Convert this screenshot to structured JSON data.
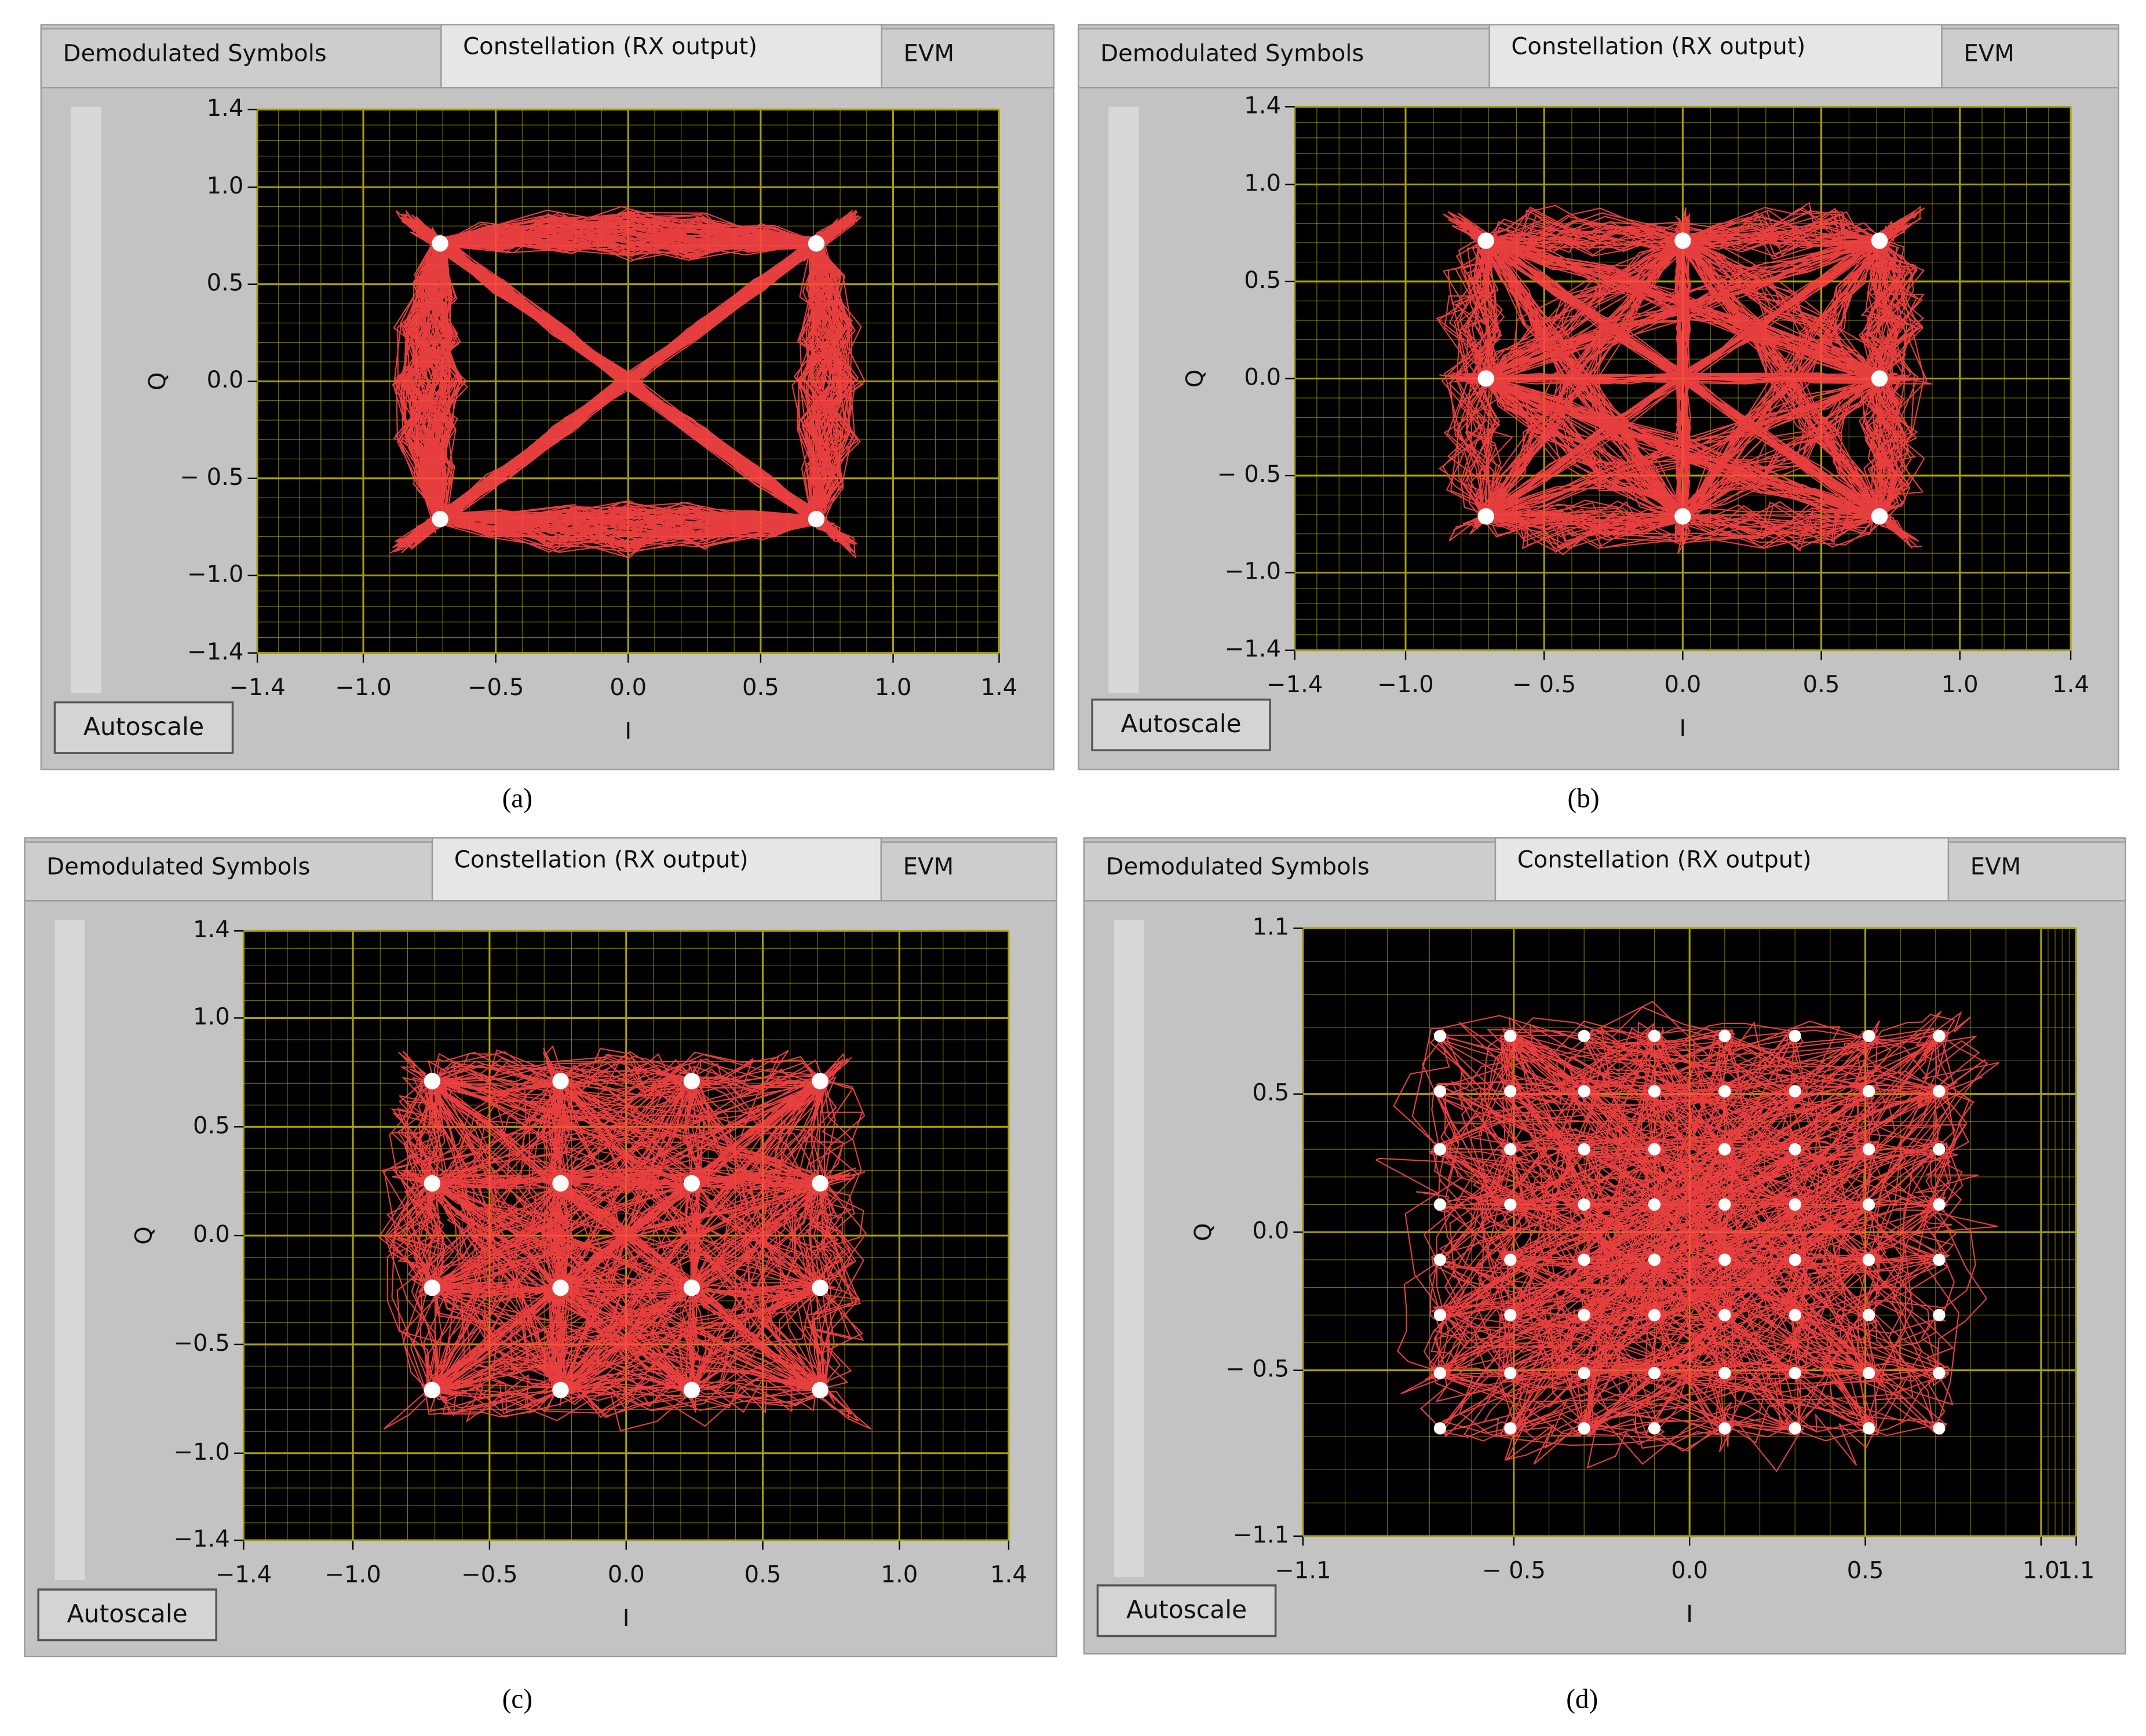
{
  "chart_data": [
    {
      "type": "scatter",
      "caption": "(a)",
      "tabs": [
        "Demodulated Symbols",
        "Constellation (RX output)",
        "EVM"
      ],
      "button": "Autoscale",
      "xlabel": "I",
      "ylabel": "Q",
      "xlim": [
        -1.4,
        1.4
      ],
      "ylim": [
        -1.4,
        1.4
      ],
      "xticks": [
        {
          "value": -1.4,
          "label": "−1.4"
        },
        {
          "value": -1.0,
          "label": "−1.0"
        },
        {
          "value": -0.5,
          "label": "−0.5"
        },
        {
          "value": 0,
          "label": "0.0"
        },
        {
          "value": 0.5,
          "label": "0.5"
        },
        {
          "value": 1.0,
          "label": "1.0"
        },
        {
          "value": 1.4,
          "label": "1.4"
        }
      ],
      "yticks": [
        {
          "value": -1.4,
          "label": "−1.4"
        },
        {
          "value": -1.0,
          "label": "−1.0"
        },
        {
          "value": -0.5,
          "label": "− 0.5"
        },
        {
          "value": 0,
          "label": "0.0"
        },
        {
          "value": 0.5,
          "label": "0.5"
        },
        {
          "value": 1.0,
          "label": "1.0"
        },
        {
          "value": 1.4,
          "label": "1.4"
        }
      ],
      "grid": true,
      "grid_color": "#a8a000",
      "trace_color": "#ff4545",
      "color": "#ffffff",
      "x": [
        -0.71,
        0.71,
        -0.71,
        0.71
      ],
      "y": [
        0.71,
        0.71,
        -0.71,
        -0.71
      ]
    },
    {
      "type": "scatter",
      "caption": "(b)",
      "tabs": [
        "Demodulated Symbols",
        "Constellation (RX output)",
        "EVM"
      ],
      "button": "Autoscale",
      "xlabel": "I",
      "ylabel": "Q",
      "xlim": [
        -1.4,
        1.4
      ],
      "ylim": [
        -1.4,
        1.4
      ],
      "xticks": [
        {
          "value": -1.4,
          "label": "−1.4"
        },
        {
          "value": -1.0,
          "label": "−1.0"
        },
        {
          "value": -0.5,
          "label": "− 0.5"
        },
        {
          "value": 0,
          "label": "0.0"
        },
        {
          "value": 0.5,
          "label": "0.5"
        },
        {
          "value": 1.0,
          "label": "1.0"
        },
        {
          "value": 1.4,
          "label": "1.4"
        }
      ],
      "yticks": [
        {
          "value": -1.4,
          "label": "−1.4"
        },
        {
          "value": -1.0,
          "label": "−1.0"
        },
        {
          "value": -0.5,
          "label": "− 0.5"
        },
        {
          "value": 0,
          "label": "0.0"
        },
        {
          "value": 0.5,
          "label": "0.5"
        },
        {
          "value": 1.0,
          "label": "1.0"
        },
        {
          "value": 1.4,
          "label": "1.4"
        }
      ],
      "grid": true,
      "grid_color": "#a8a000",
      "trace_color": "#ff4545",
      "color": "#ffffff",
      "x": [
        -0.71,
        0,
        0.71,
        -0.71,
        0.71,
        -0.71,
        0,
        0.71
      ],
      "y": [
        0.71,
        0.71,
        0.71,
        0,
        0,
        -0.71,
        -0.71,
        -0.71
      ]
    },
    {
      "type": "scatter",
      "caption": "(c)",
      "tabs": [
        "Demodulated Symbols",
        "Constellation (RX output)",
        "EVM"
      ],
      "button": "Autoscale",
      "xlabel": "I",
      "ylabel": "Q",
      "xlim": [
        -1.4,
        1.4
      ],
      "ylim": [
        -1.4,
        1.4
      ],
      "xticks": [
        {
          "value": -1.4,
          "label": "−1.4"
        },
        {
          "value": -1.0,
          "label": "−1.0"
        },
        {
          "value": -0.5,
          "label": "−0.5"
        },
        {
          "value": 0,
          "label": "0.0"
        },
        {
          "value": 0.5,
          "label": "0.5"
        },
        {
          "value": 1.0,
          "label": "1.0"
        },
        {
          "value": 1.4,
          "label": "1.4"
        }
      ],
      "yticks": [
        {
          "value": -1.4,
          "label": "−1.4"
        },
        {
          "value": -1.0,
          "label": "−1.0"
        },
        {
          "value": -0.5,
          "label": "−0.5"
        },
        {
          "value": 0,
          "label": "0.0"
        },
        {
          "value": 0.5,
          "label": "0.5"
        },
        {
          "value": 1.0,
          "label": "1.0"
        },
        {
          "value": 1.4,
          "label": "1.4"
        }
      ],
      "grid": true,
      "grid_color": "#a8a000",
      "trace_color": "#ff4545",
      "color": "#ffffff",
      "x": [
        -0.71,
        -0.24,
        0.24,
        0.71,
        -0.71,
        -0.24,
        0.24,
        0.71,
        -0.71,
        -0.24,
        0.24,
        0.71,
        -0.71,
        -0.24,
        0.24,
        0.71
      ],
      "y": [
        0.71,
        0.71,
        0.71,
        0.71,
        0.24,
        0.24,
        0.24,
        0.24,
        -0.24,
        -0.24,
        -0.24,
        -0.24,
        -0.71,
        -0.71,
        -0.71,
        -0.71
      ]
    },
    {
      "type": "scatter",
      "caption": "(d)",
      "tabs": [
        "Demodulated Symbols",
        "Constellation (RX output)",
        "EVM"
      ],
      "button": "Autoscale",
      "xlabel": "I",
      "ylabel": "Q",
      "xlim": [
        -1.1,
        1.1
      ],
      "ylim": [
        -1.1,
        1.1
      ],
      "xticks": [
        {
          "value": -1.1,
          "label": "−1.1"
        },
        {
          "value": -0.5,
          "label": "− 0.5"
        },
        {
          "value": 0,
          "label": "0.0"
        },
        {
          "value": 0.5,
          "label": "0.5"
        },
        {
          "value": 1.0,
          "label": "1.0"
        },
        {
          "value": 1.1,
          "label": "1.1"
        }
      ],
      "yticks": [
        {
          "value": -1.1,
          "label": "−1.1"
        },
        {
          "value": -0.5,
          "label": "− 0.5"
        },
        {
          "value": 0,
          "label": "0.0"
        },
        {
          "value": 0.5,
          "label": "0.5"
        },
        {
          "value": 1.1,
          "label": "1.1"
        }
      ],
      "grid": true,
      "grid_color": "#a8a000",
      "trace_color": "#ff4545",
      "color": "#ffffff",
      "x": [
        -0.71,
        -0.51,
        -0.3,
        -0.1,
        0.1,
        0.3,
        0.51,
        0.71,
        -0.71,
        -0.51,
        -0.3,
        -0.1,
        0.1,
        0.3,
        0.51,
        0.71,
        -0.71,
        -0.51,
        -0.3,
        -0.1,
        0.1,
        0.3,
        0.51,
        0.71,
        -0.71,
        -0.51,
        -0.3,
        -0.1,
        0.1,
        0.3,
        0.51,
        0.71,
        -0.71,
        -0.51,
        -0.3,
        -0.1,
        0.1,
        0.3,
        0.51,
        0.71,
        -0.71,
        -0.51,
        -0.3,
        -0.1,
        0.1,
        0.3,
        0.51,
        0.71,
        -0.71,
        -0.51,
        -0.3,
        -0.1,
        0.1,
        0.3,
        0.51,
        0.71,
        -0.71,
        -0.51,
        -0.3,
        -0.1,
        0.1,
        0.3,
        0.51,
        0.71
      ],
      "y": [
        0.71,
        0.71,
        0.71,
        0.71,
        0.71,
        0.71,
        0.71,
        0.71,
        0.51,
        0.51,
        0.51,
        0.51,
        0.51,
        0.51,
        0.51,
        0.51,
        0.3,
        0.3,
        0.3,
        0.3,
        0.3,
        0.3,
        0.3,
        0.3,
        0.1,
        0.1,
        0.1,
        0.1,
        0.1,
        0.1,
        0.1,
        0.1,
        -0.1,
        -0.1,
        -0.1,
        -0.1,
        -0.1,
        -0.1,
        -0.1,
        -0.1,
        -0.3,
        -0.3,
        -0.3,
        -0.3,
        -0.3,
        -0.3,
        -0.3,
        -0.3,
        -0.51,
        -0.51,
        -0.51,
        -0.51,
        -0.51,
        -0.51,
        -0.51,
        -0.51,
        -0.71,
        -0.71,
        -0.71,
        -0.71,
        -0.71,
        -0.71,
        -0.71,
        -0.71
      ]
    }
  ]
}
